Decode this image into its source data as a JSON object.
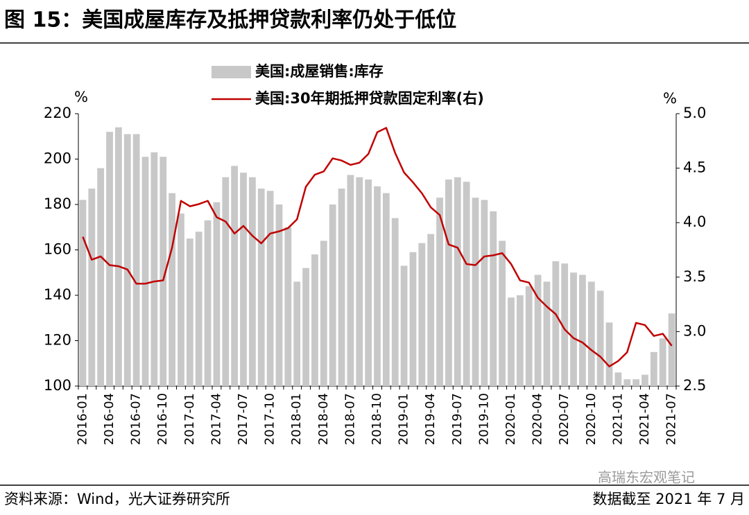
{
  "chart_data": {
    "type": "combo",
    "title": "图 15：美国成屋库存及抵押贷款利率仍处于低位",
    "source": "资料来源：Wind，光大证券研究所",
    "note": "数据截至 2021 年 7 月",
    "watermark": "高瑞东宏观笔记",
    "y_unit": "%",
    "y2_unit": "%",
    "categories": [
      "2016-01",
      null,
      null,
      "2016-04",
      null,
      null,
      "2016-07",
      null,
      null,
      "2016-10",
      null,
      null,
      "2017-01",
      null,
      null,
      "2017-04",
      null,
      null,
      "2017-07",
      null,
      null,
      "2017-10",
      null,
      null,
      "2018-01",
      null,
      null,
      "2018-04",
      null,
      null,
      "2018-07",
      null,
      null,
      "2018-10",
      null,
      null,
      "2019-01",
      null,
      null,
      "2019-04",
      null,
      null,
      "2019-07",
      null,
      null,
      "2019-10",
      null,
      null,
      "2020-01",
      null,
      null,
      "2020-04",
      null,
      null,
      "2020-07",
      null,
      null,
      "2020-10",
      null,
      null,
      "2021-01",
      null,
      null,
      "2021-04",
      null,
      null,
      "2021-07"
    ],
    "series": [
      {
        "name": "美国:成屋销售:库存",
        "type": "bar",
        "color": "#c8c8c8",
        "values": [
          182,
          187,
          196,
          212,
          214,
          211,
          211,
          201,
          203,
          201,
          185,
          176,
          165,
          168,
          173,
          181,
          192,
          197,
          194,
          192,
          187,
          186,
          180,
          170,
          146,
          152,
          158,
          164,
          180,
          187,
          193,
          192,
          191,
          188,
          185,
          174,
          153,
          159,
          163,
          167,
          183,
          191,
          192,
          190,
          183,
          182,
          177,
          164,
          139,
          140,
          144,
          149,
          146,
          155,
          154,
          150,
          149,
          146,
          142,
          128,
          106,
          103,
          103,
          105,
          115,
          121,
          132
        ]
      },
      {
        "name": "美国:30年期抵押贷款固定利率(右)",
        "type": "line",
        "color": "#c00000",
        "axis": "y2",
        "values": [
          3.87,
          3.66,
          3.69,
          3.61,
          3.6,
          3.57,
          3.44,
          3.44,
          3.46,
          3.47,
          3.77,
          4.2,
          4.15,
          4.17,
          4.2,
          4.05,
          4.01,
          3.9,
          3.97,
          3.88,
          3.81,
          3.9,
          3.92,
          3.95,
          4.03,
          4.33,
          4.44,
          4.47,
          4.59,
          4.57,
          4.53,
          4.55,
          4.63,
          4.83,
          4.87,
          4.64,
          4.46,
          4.37,
          4.27,
          4.14,
          4.07,
          3.8,
          3.77,
          3.62,
          3.61,
          3.69,
          3.7,
          3.72,
          3.62,
          3.47,
          3.45,
          3.31,
          3.23,
          3.16,
          3.02,
          2.94,
          2.9,
          2.83,
          2.77,
          2.68,
          2.73,
          2.81,
          3.08,
          3.06,
          2.96,
          2.98,
          2.87
        ]
      }
    ],
    "ylim": [
      100,
      220
    ],
    "yticks": [
      100,
      120,
      140,
      160,
      180,
      200,
      220
    ],
    "y2lim": [
      2.5,
      5.0
    ],
    "y2ticks": [
      2.5,
      {
        "value": 3,
        "label": "3.0"
      },
      3.5,
      {
        "value": 4,
        "label": "4.0"
      },
      4.5,
      {
        "value": 5,
        "label": "5.0"
      }
    ]
  }
}
